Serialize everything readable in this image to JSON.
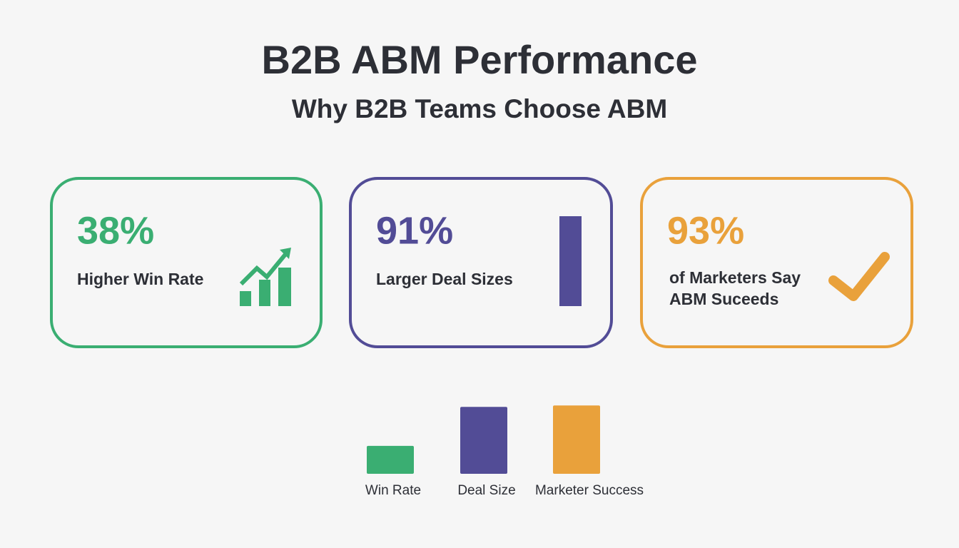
{
  "header": {
    "title": "B2B ABM Performance",
    "subtitle": "Why B2B Teams Choose ABM"
  },
  "cards": [
    {
      "stat": "38%",
      "label": "Higher Win Rate",
      "color": "#3aae72"
    },
    {
      "stat": "91%",
      "label": "Larger Deal Sizes",
      "color": "#524c96"
    },
    {
      "stat": "93%",
      "label_lines": [
        "of Marketers Say",
        "ABM Suceeds"
      ],
      "color": "#e9a13b"
    }
  ],
  "chart_data": {
    "type": "bar",
    "categories": [
      "Win Rate",
      "Deal Size",
      "Marketer Success"
    ],
    "values": [
      38,
      91,
      93
    ],
    "colors": [
      "#3aae72",
      "#524c96",
      "#e9a13b"
    ],
    "ylim": [
      0,
      100
    ]
  }
}
